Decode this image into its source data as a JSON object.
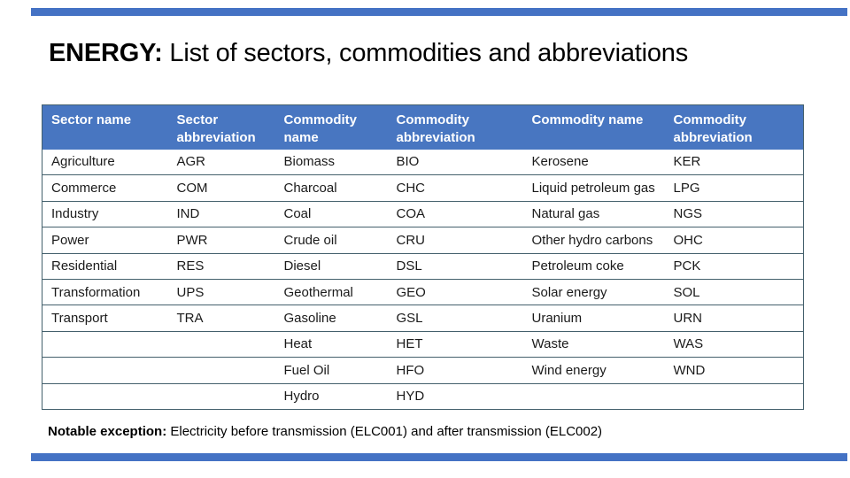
{
  "slide": {
    "title": {
      "emphasis": "ENERGY:",
      "rest": " List of sectors, commodities and abbreviations"
    },
    "accent_color": "#4472C4",
    "note": {
      "label": "Notable exception:",
      "text": " Electricity before transmission (ELC001) and after transmission (ELC002)"
    }
  },
  "table": {
    "header_bg": "#4876C1",
    "border_color": "#44606C",
    "columns": [
      "Sector name",
      "Sector abbreviation",
      "Commodity name",
      "Commodity abbreviation",
      "Commodity name",
      "Commodity abbreviation"
    ],
    "rows": [
      [
        "Agriculture",
        "AGR",
        "Biomass",
        "BIO",
        "Kerosene",
        "KER"
      ],
      [
        "Commerce",
        "COM",
        "Charcoal",
        "CHC",
        "Liquid petroleum gas",
        "LPG"
      ],
      [
        "Industry",
        "IND",
        "Coal",
        "COA",
        "Natural gas",
        "NGS"
      ],
      [
        "Power",
        "PWR",
        "Crude oil",
        "CRU",
        "Other hydro carbons",
        "OHC"
      ],
      [
        "Residential",
        "RES",
        "Diesel",
        "DSL",
        "Petroleum coke",
        "PCK"
      ],
      [
        "Transformation",
        "UPS",
        "Geothermal",
        "GEO",
        "Solar energy",
        "SOL"
      ],
      [
        "Transport",
        "TRA",
        "Gasoline",
        "GSL",
        "Uranium",
        "URN"
      ],
      [
        "",
        "",
        "Heat",
        "HET",
        "Waste",
        "WAS"
      ],
      [
        "",
        "",
        "Fuel Oil",
        "HFO",
        "Wind energy",
        "WND"
      ],
      [
        "",
        "",
        "Hydro",
        "HYD",
        "",
        ""
      ]
    ]
  }
}
